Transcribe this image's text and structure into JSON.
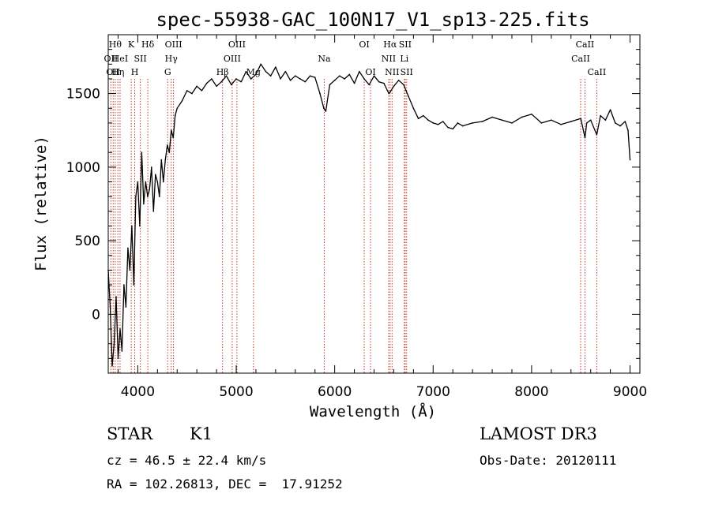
{
  "chart_data": {
    "type": "line",
    "title": "spec-55938-GAC_100N17_V1_sp13-225.fits",
    "xlabel": "Wavelength (Å)",
    "ylabel": "Flux (relative)",
    "xlim": [
      3700,
      9100
    ],
    "ylim": [
      -400,
      1900
    ],
    "xticks": [
      4000,
      5000,
      6000,
      7000,
      8000,
      9000
    ],
    "yticks": [
      0,
      500,
      1000,
      1500
    ],
    "grid": false,
    "series": [
      {
        "name": "flux",
        "x": [
          3700,
          3720,
          3740,
          3760,
          3780,
          3800,
          3820,
          3840,
          3860,
          3880,
          3900,
          3920,
          3940,
          3960,
          3980,
          4000,
          4020,
          4040,
          4060,
          4080,
          4100,
          4120,
          4140,
          4160,
          4180,
          4200,
          4220,
          4240,
          4260,
          4280,
          4300,
          4320,
          4340,
          4360,
          4380,
          4400,
          4450,
          4500,
          4550,
          4600,
          4650,
          4700,
          4750,
          4800,
          4850,
          4900,
          4950,
          5000,
          5050,
          5100,
          5150,
          5200,
          5250,
          5300,
          5350,
          5400,
          5450,
          5500,
          5550,
          5600,
          5650,
          5700,
          5750,
          5800,
          5850,
          5890,
          5910,
          5950,
          6000,
          6050,
          6100,
          6150,
          6200,
          6250,
          6300,
          6350,
          6400,
          6450,
          6500,
          6550,
          6563,
          6600,
          6650,
          6700,
          6750,
          6800,
          6850,
          6900,
          6950,
          7000,
          7050,
          7100,
          7150,
          7200,
          7250,
          7300,
          7400,
          7500,
          7600,
          7700,
          7800,
          7900,
          8000,
          8100,
          8200,
          8300,
          8400,
          8500,
          8542,
          8560,
          8600,
          8662,
          8700,
          8750,
          8800,
          8850,
          8900,
          8950,
          8980,
          9000
        ],
        "y": [
          300,
          50,
          -350,
          -200,
          120,
          -300,
          -100,
          -250,
          200,
          50,
          450,
          300,
          600,
          200,
          800,
          900,
          600,
          1100,
          750,
          900,
          800,
          850,
          1000,
          700,
          950,
          900,
          800,
          1050,
          900,
          1050,
          1150,
          1100,
          1250,
          1200,
          1350,
          1400,
          1450,
          1520,
          1500,
          1550,
          1520,
          1570,
          1600,
          1550,
          1580,
          1620,
          1560,
          1600,
          1580,
          1650,
          1600,
          1630,
          1700,
          1650,
          1620,
          1680,
          1600,
          1650,
          1590,
          1620,
          1600,
          1580,
          1620,
          1610,
          1500,
          1400,
          1380,
          1560,
          1590,
          1620,
          1600,
          1630,
          1570,
          1650,
          1600,
          1560,
          1620,
          1580,
          1570,
          1500,
          1510,
          1550,
          1590,
          1560,
          1480,
          1400,
          1330,
          1350,
          1320,
          1300,
          1290,
          1310,
          1270,
          1260,
          1300,
          1280,
          1300,
          1310,
          1340,
          1320,
          1300,
          1340,
          1360,
          1300,
          1320,
          1290,
          1310,
          1330,
          1200,
          1300,
          1320,
          1220,
          1350,
          1320,
          1390,
          1300,
          1280,
          1310,
          1250,
          1050
        ]
      }
    ],
    "lines": [
      {
        "wave": 3727,
        "label": "OII",
        "row": 1
      },
      {
        "wave": 3750,
        "label": "OII",
        "row": 2
      },
      {
        "wave": 3771,
        "label": "Hθ",
        "row": 0
      },
      {
        "wave": 3798,
        "label": "Hη",
        "row": 2
      },
      {
        "wave": 3820,
        "label": "HeI",
        "row": 1
      },
      {
        "wave": 3934,
        "label": "K",
        "row": 0
      },
      {
        "wave": 3969,
        "label": "H",
        "row": 2
      },
      {
        "wave": 4026,
        "label": "SII",
        "row": 1
      },
      {
        "wave": 4102,
        "label": "Hδ",
        "row": 0
      },
      {
        "wave": 4304,
        "label": "G",
        "row": 2
      },
      {
        "wave": 4340,
        "label": "Hγ",
        "row": 1
      },
      {
        "wave": 4363,
        "label": "OIII",
        "row": 0
      },
      {
        "wave": 4861,
        "label": "Hβ",
        "row": 2
      },
      {
        "wave": 4959,
        "label": "OIII",
        "row": 1
      },
      {
        "wave": 5007,
        "label": "OIII",
        "row": 0
      },
      {
        "wave": 5175,
        "label": "Mg",
        "row": 2
      },
      {
        "wave": 5894,
        "label": "Na",
        "row": 1
      },
      {
        "wave": 6300,
        "label": "OI",
        "row": 0
      },
      {
        "wave": 6364,
        "label": "OI",
        "row": 2
      },
      {
        "wave": 6548,
        "label": "NII",
        "row": 1
      },
      {
        "wave": 6563,
        "label": "Hα",
        "row": 0
      },
      {
        "wave": 6583,
        "label": "NII",
        "row": 2
      },
      {
        "wave": 6707,
        "label": "Li",
        "row": 1
      },
      {
        "wave": 6716,
        "label": "SII",
        "row": 0
      },
      {
        "wave": 6731,
        "label": "SII",
        "row": 2
      },
      {
        "wave": 8498,
        "label": "CaII",
        "row": 1
      },
      {
        "wave": 8542,
        "label": "CaII",
        "row": 0
      },
      {
        "wave": 8662,
        "label": "CaII",
        "row": 2
      }
    ]
  },
  "info": {
    "class": "STAR",
    "subclass": "K1",
    "survey": "LAMOST DR3",
    "cz": "cz = 46.5 ± 22.4 km/s",
    "obsdate": "Obs-Date: 20120111",
    "radec": "RA = 102.26813, DEC =  17.91252"
  }
}
